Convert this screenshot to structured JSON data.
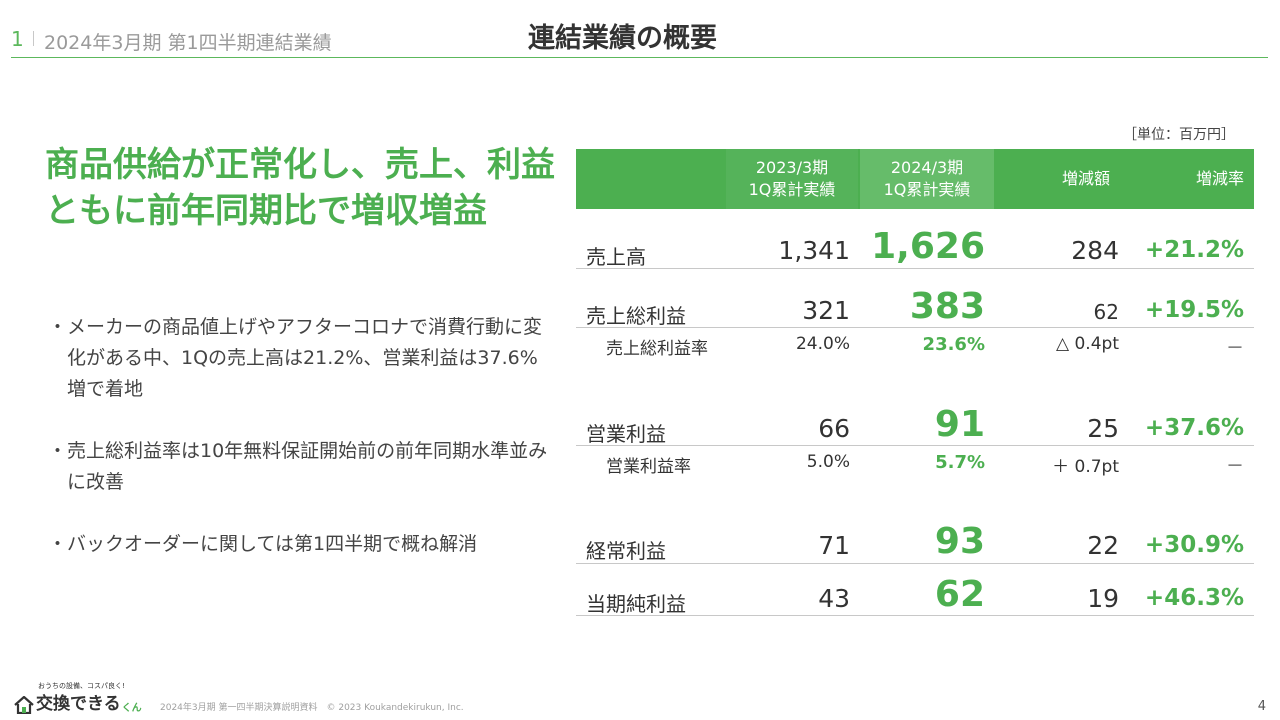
{
  "header": {
    "slide_number": "1",
    "period": "2024年3月期 第1四半期連結業績",
    "title": "連結業績の概要"
  },
  "headline": "商品供給が正常化し、売上、利益ともに前年同期比で増収増益",
  "bullets": [
    "メーカーの商品値上げやアフターコロナで消費行動に変化がある中、1Qの売上高は21.2%、営業利益は37.6%増で着地",
    "売上総利益率は10年無料保証開始前の前年同期水準並みに改善",
    "バックオーダーに関しては第1四半期で概ね解消"
  ],
  "table": {
    "unit": "［単位：百万円］",
    "headers": {
      "col1_line1": "2023/3期",
      "col1_line2": "1Q累計実績",
      "col2_line1": "2024/3期",
      "col2_line2": "1Q累計実績",
      "col3": "増減額",
      "col4": "増減率"
    },
    "rows": [
      {
        "label": "売上高",
        "v2023": "1,341",
        "v2024": "1,626",
        "diff": "284",
        "rate": "+21.2%"
      },
      {
        "label": "売上総利益",
        "v2023": "321",
        "v2024": "383",
        "diff": "62",
        "rate": "+19.5%"
      },
      {
        "label": "売上総利益率",
        "v2023": "24.0%",
        "v2024": "23.6%",
        "diff": "△ 0.4pt",
        "rate": "－"
      },
      {
        "label": "営業利益",
        "v2023": "66",
        "v2024": "91",
        "diff": "25",
        "rate": "+37.6%"
      },
      {
        "label": "営業利益率",
        "v2023": "5.0%",
        "v2024": "5.7%",
        "diff": "＋ 0.7pt",
        "rate": "－"
      },
      {
        "label": "経常利益",
        "v2023": "71",
        "v2024": "93",
        "diff": "22",
        "rate": "+30.9%"
      },
      {
        "label": "当期純利益",
        "v2023": "43",
        "v2024": "62",
        "diff": "19",
        "rate": "+46.3%"
      }
    ]
  },
  "footer": {
    "logo_tagline": "おうちの設備、コスパ良く!",
    "logo_name": "交換できる",
    "logo_suffix": "くん",
    "text": "2024年3月期 第一四半期決算説明資料　© 2023 Koukandekirukun, Inc.",
    "page_number": "4"
  },
  "colors": {
    "accent": "#4caf50",
    "header_fill": "#4caf50",
    "rule": "#c8c8c8"
  }
}
